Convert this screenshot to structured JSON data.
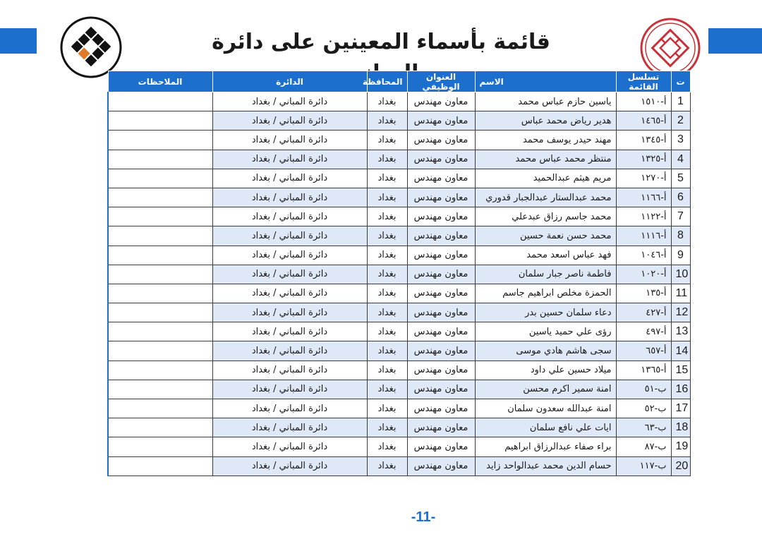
{
  "header": {
    "title": "قائمة بأسماء المعينين على دائرة المباني"
  },
  "colors": {
    "accent": "#1d6fce",
    "row_shade": "#dfe8f6",
    "logo_orange": "#e07a2a"
  },
  "table": {
    "headers": {
      "num": "ت",
      "serial": "تسلسل القائمة",
      "name": "الاسم",
      "title": "العنوان الوظيفي",
      "gov": "المحافظة",
      "dept": "الدائرة",
      "notes": "الملاحظات"
    },
    "rows": [
      {
        "num": "1",
        "serial": "أ-١٥١٠",
        "name": "ياسين حازم عباس محمد",
        "title": "معاون مهندس",
        "gov": "بغداد",
        "dept": "دائرة المباني / بغداد",
        "notes": ""
      },
      {
        "num": "2",
        "serial": "أ-١٤٦٥",
        "name": "هدير رياض محمد عباس",
        "title": "معاون مهندس",
        "gov": "بغداد",
        "dept": "دائرة المباني / بغداد",
        "notes": ""
      },
      {
        "num": "3",
        "serial": "أ-١٣٤٥",
        "name": "مهند حيدر يوسف محمد",
        "title": "معاون مهندس",
        "gov": "بغداد",
        "dept": "دائرة المباني / بغداد",
        "notes": ""
      },
      {
        "num": "4",
        "serial": "أ-١٣٢٥",
        "name": "منتظر محمد عباس محمد",
        "title": "معاون مهندس",
        "gov": "بغداد",
        "dept": "دائرة المباني / بغداد",
        "notes": ""
      },
      {
        "num": "5",
        "serial": "أ-١٢٧٠",
        "name": "مريم هيثم عبدالحميد",
        "title": "معاون مهندس",
        "gov": "بغداد",
        "dept": "دائرة المباني / بغداد",
        "notes": ""
      },
      {
        "num": "6",
        "serial": "أ-١١٦٦",
        "name": "محمد عبدالستار عبدالجبار قدوري",
        "title": "معاون مهندس",
        "gov": "بغداد",
        "dept": "دائرة المباني / بغداد",
        "notes": ""
      },
      {
        "num": "7",
        "serial": "أ-١١٢٢",
        "name": "محمد جاسم رزاق عبدعلي",
        "title": "معاون مهندس",
        "gov": "بغداد",
        "dept": "دائرة المباني / بغداد",
        "notes": ""
      },
      {
        "num": "8",
        "serial": "أ-١١١٦",
        "name": "محمد حسن نعمة حسين",
        "title": "معاون مهندس",
        "gov": "بغداد",
        "dept": "دائرة المباني / بغداد",
        "notes": ""
      },
      {
        "num": "9",
        "serial": "أ-١٠٤٦",
        "name": "فهد عباس اسعد محمد",
        "title": "معاون مهندس",
        "gov": "بغداد",
        "dept": "دائرة المباني / بغداد",
        "notes": ""
      },
      {
        "num": "10",
        "serial": "أ-١٠٢٠",
        "name": "فاطمة ناصر جبار سلمان",
        "title": "معاون مهندس",
        "gov": "بغداد",
        "dept": "دائرة المباني / بغداد",
        "notes": ""
      },
      {
        "num": "11",
        "serial": "أ-١٣٥",
        "name": "الحمزة مخلص ابراهيم جاسم",
        "title": "معاون مهندس",
        "gov": "بغداد",
        "dept": "دائرة المباني / بغداد",
        "notes": ""
      },
      {
        "num": "12",
        "serial": "أ-٤٢٧",
        "name": "دعاء سلمان حسين بدر",
        "title": "معاون مهندس",
        "gov": "بغداد",
        "dept": "دائرة المباني / بغداد",
        "notes": ""
      },
      {
        "num": "13",
        "serial": "أ-٤٩٧",
        "name": "رؤى علي حميد ياسين",
        "title": "معاون مهندس",
        "gov": "بغداد",
        "dept": "دائرة المباني / بغداد",
        "notes": ""
      },
      {
        "num": "14",
        "serial": "أ-٦٥٧",
        "name": "سجى هاشم هادي موسى",
        "title": "معاون مهندس",
        "gov": "بغداد",
        "dept": "دائرة المباني / بغداد",
        "notes": ""
      },
      {
        "num": "15",
        "serial": "أ-١٣٦٥",
        "name": "ميلاد حسين علي داود",
        "title": "معاون مهندس",
        "gov": "بغداد",
        "dept": "دائرة المباني / بغداد",
        "notes": ""
      },
      {
        "num": "16",
        "serial": "ب-٥١",
        "name": "امنة سمير اكرم محسن",
        "title": "معاون مهندس",
        "gov": "بغداد",
        "dept": "دائرة المباني / بغداد",
        "notes": ""
      },
      {
        "num": "17",
        "serial": "ب-٥٢",
        "name": "امنة عبدالله سعدون سلمان",
        "title": "معاون مهندس",
        "gov": "بغداد",
        "dept": "دائرة المباني / بغداد",
        "notes": ""
      },
      {
        "num": "18",
        "serial": "ب-٦٣",
        "name": "ايات علي نافع سلمان",
        "title": "معاون مهندس",
        "gov": "بغداد",
        "dept": "دائرة المباني / بغداد",
        "notes": ""
      },
      {
        "num": "19",
        "serial": "ب-٨٧",
        "name": "براء صفاء عبدالرزاق ابراهيم",
        "title": "معاون مهندس",
        "gov": "بغداد",
        "dept": "دائرة المباني / بغداد",
        "notes": ""
      },
      {
        "num": "20",
        "serial": "ب-١١٧",
        "name": "حسام الدين محمد عبدالواحد زايد",
        "title": "معاون مهندس",
        "gov": "بغداد",
        "dept": "دائرة المباني / بغداد",
        "notes": ""
      }
    ]
  },
  "footer": {
    "page_number": "-11-"
  }
}
